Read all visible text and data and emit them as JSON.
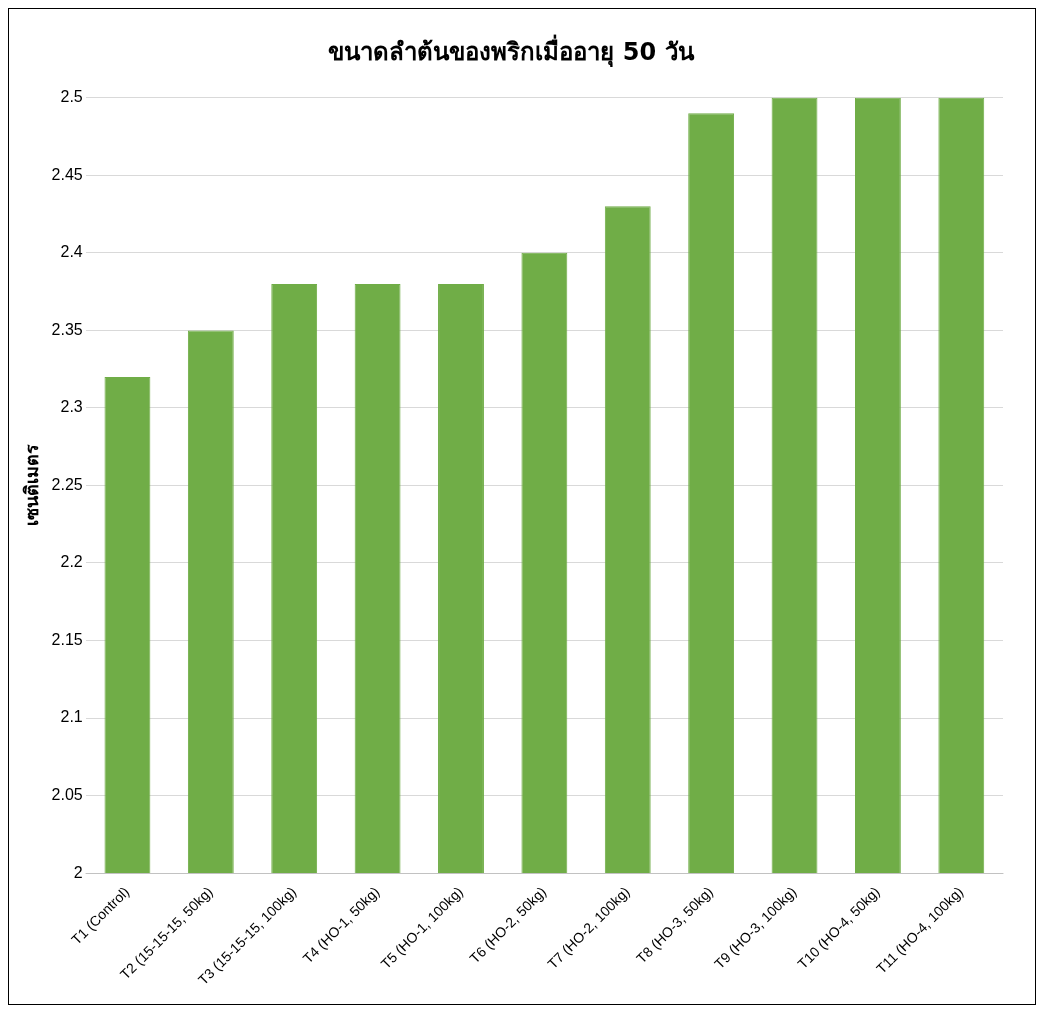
{
  "chart_data": {
    "type": "bar",
    "title": "ขนาดลำต้นของพริกเมื่ออายุ 50 วัน",
    "ylabel": "เซนติเมตร",
    "categories": [
      "T1 (Control)",
      "T2 (15-15-15, 50kg)",
      "T3 (15-15-15, 100kg)",
      "T4 (HO-1, 50kg)",
      "T5 (HO-1, 100kg)",
      "T6 (HO-2, 50kg)",
      "T7 (HO-2, 100kg)",
      "T8 (HO-3, 50kg)",
      "T9 (HO-3, 100kg)",
      "T10 (HO-4, 50kg)",
      "T11 (HO-4, 100kg)"
    ],
    "values": [
      2.32,
      2.35,
      2.38,
      2.38,
      2.38,
      2.4,
      2.43,
      2.49,
      2.5,
      2.5,
      2.5
    ],
    "color": "#70ad47",
    "ylim": [
      2,
      2.5
    ],
    "yticks": [
      2,
      2.05,
      2.1,
      2.15,
      2.2,
      2.25,
      2.3,
      2.35,
      2.4,
      2.45,
      2.5
    ],
    "grid": "y",
    "legend": false
  }
}
